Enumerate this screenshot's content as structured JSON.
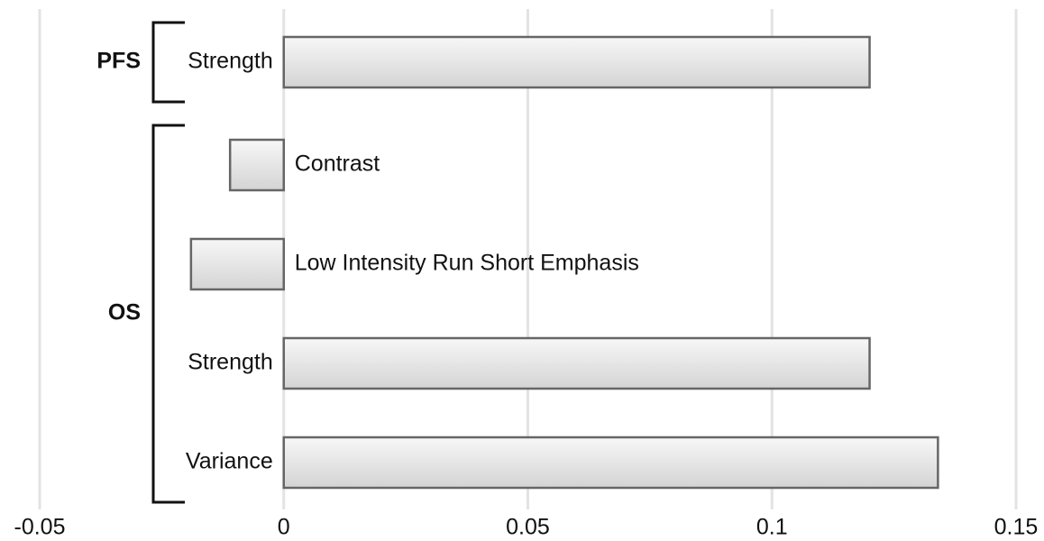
{
  "chart_data": {
    "type": "bar",
    "orientation": "horizontal",
    "groups": [
      {
        "name": "PFS",
        "categories": [
          "Strength"
        ],
        "values": [
          0.12
        ]
      },
      {
        "name": "OS",
        "categories": [
          "Contrast",
          "Low Intensity Run Short Emphasis",
          "Strength",
          "Variance"
        ],
        "values": [
          -0.011,
          -0.019,
          0.12,
          0.134
        ]
      }
    ],
    "color": "#e4e4e4",
    "xlim": [
      -0.05,
      0.15
    ],
    "xticks": [
      -0.05,
      0,
      0.05,
      0.1,
      0.15
    ],
    "grid": true
  }
}
